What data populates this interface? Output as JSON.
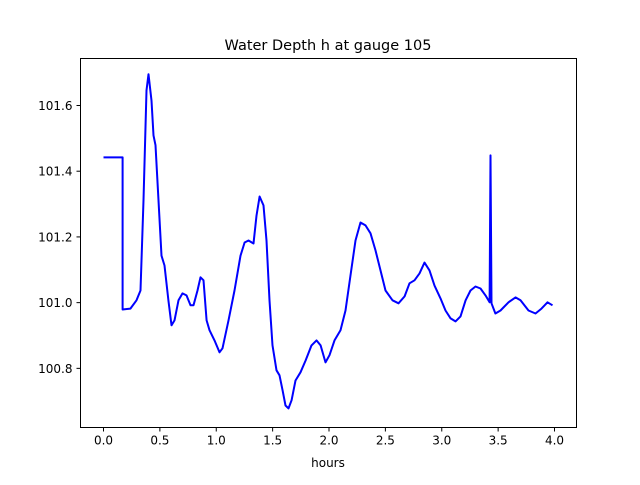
{
  "chart_data": {
    "type": "line",
    "title": "Water Depth h at gauge 105",
    "xlabel": "hours",
    "ylabel": "",
    "xlim": [
      -0.204,
      4.195
    ],
    "ylim": [
      100.62,
      101.743
    ],
    "xticks": [
      0.0,
      0.5,
      1.0,
      1.5,
      2.0,
      2.5,
      3.0,
      3.5,
      4.0
    ],
    "xtick_labels": [
      "0.0",
      "0.5",
      "1.0",
      "1.5",
      "2.0",
      "2.5",
      "3.0",
      "3.5",
      "4.0"
    ],
    "yticks": [
      100.8,
      101.0,
      101.2,
      101.4,
      101.6
    ],
    "ytick_labels": [
      "100.8",
      "101.0",
      "101.2",
      "101.4",
      "101.6"
    ],
    "grid": false,
    "series": [
      {
        "name": "h",
        "color": "#0000ff",
        "x": [
          0.0,
          0.169,
          0.169,
          0.239,
          0.293,
          0.328,
          0.355,
          0.381,
          0.399,
          0.426,
          0.443,
          0.461,
          0.488,
          0.514,
          0.541,
          0.576,
          0.603,
          0.63,
          0.665,
          0.701,
          0.736,
          0.772,
          0.798,
          0.834,
          0.86,
          0.887,
          0.914,
          0.94,
          0.984,
          1.029,
          1.055,
          1.109,
          1.162,
          1.215,
          1.251,
          1.286,
          1.33,
          1.357,
          1.384,
          1.419,
          1.446,
          1.472,
          1.499,
          1.534,
          1.561,
          1.588,
          1.614,
          1.641,
          1.668,
          1.703,
          1.747,
          1.792,
          1.845,
          1.889,
          1.925,
          1.969,
          2.004,
          2.049,
          2.102,
          2.146,
          2.191,
          2.235,
          2.279,
          2.324,
          2.368,
          2.412,
          2.457,
          2.501,
          2.563,
          2.616,
          2.67,
          2.714,
          2.758,
          2.803,
          2.847,
          2.891,
          2.936,
          2.989,
          3.033,
          3.078,
          3.122,
          3.166,
          3.211,
          3.255,
          3.299,
          3.344,
          3.388,
          3.424,
          3.432,
          3.441,
          3.476,
          3.521,
          3.592,
          3.654,
          3.698,
          3.769,
          3.831,
          3.885,
          3.938,
          3.982
        ],
        "y": [
          101.442,
          101.442,
          100.979,
          100.982,
          101.007,
          101.037,
          101.311,
          101.646,
          101.695,
          101.615,
          101.509,
          101.479,
          101.311,
          101.143,
          101.113,
          101.007,
          100.931,
          100.946,
          101.007,
          101.028,
          101.022,
          100.992,
          100.992,
          101.037,
          101.077,
          101.068,
          100.946,
          100.916,
          100.885,
          100.849,
          100.861,
          100.946,
          101.037,
          101.143,
          101.183,
          101.189,
          101.18,
          101.265,
          101.323,
          101.296,
          101.189,
          101.007,
          100.87,
          100.794,
          100.779,
          100.733,
          100.687,
          100.678,
          100.703,
          100.763,
          100.788,
          100.824,
          100.87,
          100.885,
          100.87,
          100.818,
          100.84,
          100.885,
          100.916,
          100.976,
          101.083,
          101.189,
          101.244,
          101.235,
          101.211,
          101.159,
          101.098,
          101.037,
          101.007,
          100.998,
          101.019,
          101.059,
          101.068,
          101.089,
          101.122,
          101.098,
          101.052,
          101.013,
          100.976,
          100.952,
          100.943,
          100.958,
          101.007,
          101.037,
          101.049,
          101.043,
          101.022,
          101.001,
          101.448,
          100.998,
          100.967,
          100.976,
          101.001,
          101.016,
          101.007,
          100.976,
          100.967,
          100.982,
          101.001,
          100.992
        ]
      }
    ]
  }
}
